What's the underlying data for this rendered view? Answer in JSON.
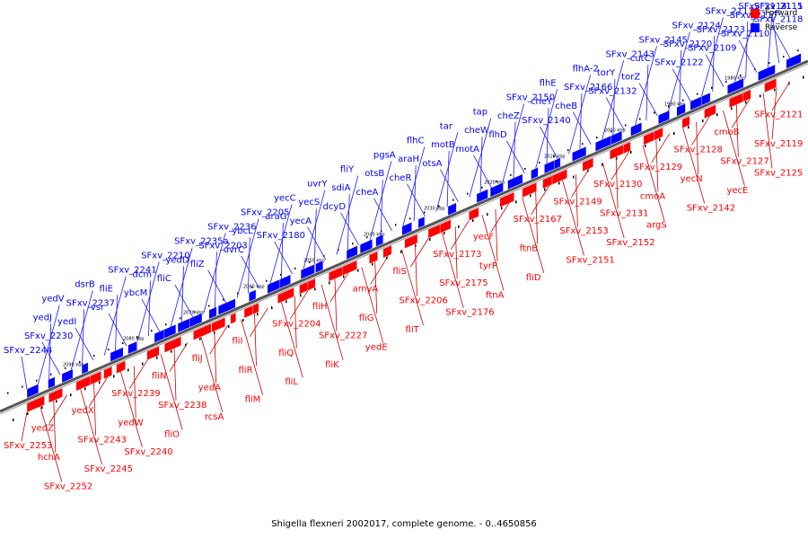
{
  "caption": "Shigella flexneri 2002017, complete genome. - 0..4650856",
  "legend": [
    {
      "label": "Forward",
      "color": "#ff0000"
    },
    {
      "label": "Reverse",
      "color": "#0000ff"
    }
  ],
  "colors": {
    "forward": "#ff0000",
    "reverse": "#0000ff",
    "forward_leader": "#cc0000",
    "reverse_leader": "#1a1aff",
    "backbone": "#555555"
  },
  "ticks": [
    "2090 kbp",
    "2080 kbp",
    "2070 kbp",
    "2060 kbp",
    "2050 kbp",
    "2040 kbp",
    "2030 kbp",
    "2020 kbp",
    "2010 kbp",
    "2000 kbp",
    "1990 kbp",
    "1980 kbp"
  ],
  "reverse_labels": [
    "SFxv_2118",
    "SFxv_2111",
    "SFxv_2115",
    "SFxv_2110",
    "SFxv_2117",
    "SFxv_2114",
    "SFxv_2109",
    "SFxv_2123",
    "SFxv_2113",
    "SFxv_2122",
    "SFxv_2120",
    "SFxv_2124",
    "torZ",
    "cutC",
    "SFxv_2145",
    "SFxv_2132",
    "torY",
    "SFxv_2143",
    "cheB",
    "SFxv_2166",
    "flhA-2",
    "SFxv_2140",
    "cheY",
    "flhE",
    "flhD",
    "cheZ",
    "SFxv_2150",
    "motA",
    "cheW",
    "tap",
    "otsA",
    "motB",
    "tar",
    "cheR",
    "araH",
    "flhC",
    "cheA",
    "otsB",
    "pgsA",
    "dcyD",
    "sdiA",
    "fliY",
    "yecA",
    "yecS",
    "uvrY",
    "SFxv_2180",
    "araG",
    "yecC",
    "uvrC",
    "ybcL",
    "SFxv_2205",
    "fliZ",
    "SFxv_2203",
    "SFxv_2236",
    "fliC",
    "yedD",
    "SFxv_2235a",
    "ybcM",
    "dcm",
    "SFxv_2210",
    "vsr",
    "fliE",
    "SFxv_2241",
    "yedI",
    "SFxv_2237",
    "dsrB",
    "SFxv_2230",
    "yedJ",
    "yedV",
    "SFxv_2244"
  ],
  "forward_labels": [
    "SFxv_2121",
    "SFxv_2119",
    "SFxv_2125",
    "cmoB",
    "SFxv_2127",
    "yecE",
    "SFxv_2128",
    "yecN",
    "SFxv_2142",
    "SFxv_2129",
    "cmoA",
    "argS",
    "SFxv_2130",
    "SFxv_2131",
    "SFxv_2152",
    "SFxv_2149",
    "SFxv_2153",
    "SFxv_2151",
    "SFxv_2167",
    "ftnB",
    "fliD",
    "yecF",
    "tyrP",
    "ftnA",
    "SFxv_2173",
    "SFxv_2175",
    "SFxv_2176",
    "fliS",
    "SFxv_2206",
    "fliT",
    "amyA",
    "fliG",
    "yedE",
    "fliH",
    "SFxv_2227",
    "fliK",
    "SFxv_2204",
    "fliQ",
    "fliL",
    "fliI",
    "fliR",
    "fliM",
    "fliJ",
    "yedA",
    "rcsA",
    "fliN",
    "SFxv_2238",
    "fliO",
    "SFxv_2239",
    "yedW",
    "SFxv_2240",
    "yedX",
    "SFxv_2243",
    "SFxv_2245",
    "yedZ",
    "hchA",
    "SFxv_2252",
    "SFxv_2253"
  ]
}
